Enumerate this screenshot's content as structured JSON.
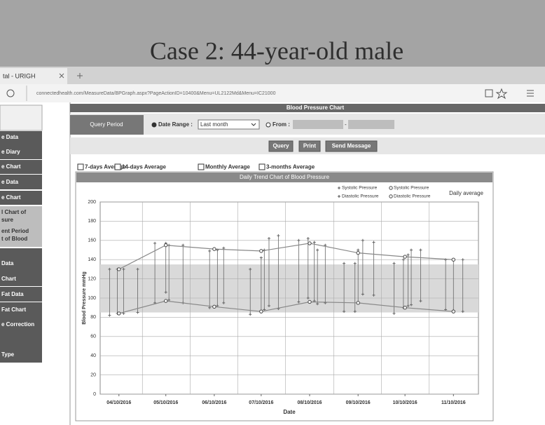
{
  "banner": {
    "title": "Case 2: 44-year-old male"
  },
  "browser": {
    "tab": "tal - URIGH",
    "url": "connectedhealth.com/MeasureData/BPGraph.aspx?PageActionID=10400&Menu=UL2122Md&Menu=IC21000"
  },
  "sidebar": {
    "items": [
      "e Data",
      "e Diary",
      "e Chart",
      "e Data",
      "e Chart",
      "l Chart of",
      "sure",
      "ent Period",
      "t of Blood",
      "Data",
      "Chart",
      "Fat Data",
      "Fat Chart",
      "e Correction",
      "Type"
    ]
  },
  "page": {
    "title": "Blood Pressure Chart",
    "query_label": "Query Period",
    "date_range": "Date Range :",
    "range_option": "Last month",
    "from": "From :",
    "dash": "-",
    "buttons": [
      "Query",
      "Print",
      "Send Message"
    ],
    "averages": [
      "7-days Average",
      "14-days Average",
      "Monthly Average",
      "3-months Average"
    ]
  },
  "chart_data": {
    "type": "line",
    "title": "Daily Trend Chart of Blood Pressure",
    "y_label": "Blood Pressure mmHg",
    "x_label": "Date",
    "legend_title": "Daily average",
    "ylim": [
      0,
      200
    ],
    "yticks": [
      0,
      20,
      40,
      60,
      80,
      100,
      120,
      140,
      160,
      180,
      200
    ],
    "grid": true,
    "band": [
      85,
      135
    ],
    "xlim": [
      "2016-03-29",
      "2016-11-26"
    ],
    "xticks": [
      {
        "value": "2016-04-10",
        "label": "04/10/2016"
      },
      {
        "value": "2016-05-10",
        "label": "05/10/2016"
      },
      {
        "value": "2016-06-10",
        "label": "06/10/2016"
      },
      {
        "value": "2016-07-10",
        "label": "07/10/2016"
      },
      {
        "value": "2016-08-10",
        "label": "08/10/2016"
      },
      {
        "value": "2016-09-10",
        "label": "09/10/2016"
      },
      {
        "value": "2016-10-10",
        "label": "10/10/2016"
      },
      {
        "value": "2016-11-10",
        "label": "11/10/2016"
      }
    ],
    "series": [
      {
        "name": "Systolic Pressure",
        "color": "#666666",
        "x": [
          "2016-04-04",
          "2016-04-09",
          "2016-04-13",
          "2016-04-22",
          "2016-05-03",
          "2016-05-10",
          "2016-05-12",
          "2016-05-21",
          "2016-06-07",
          "2016-06-12",
          "2016-06-16",
          "2016-07-03",
          "2016-07-10",
          "2016-07-12",
          "2016-07-15",
          "2016-07-21",
          "2016-08-03",
          "2016-08-09",
          "2016-08-13",
          "2016-08-15",
          "2016-08-20",
          "2016-09-01",
          "2016-09-08",
          "2016-09-10",
          "2016-09-13",
          "2016-09-20",
          "2016-10-03",
          "2016-10-09",
          "2016-10-12",
          "2016-10-14",
          "2016-10-20",
          "2016-11-05",
          "2016-11-10",
          "2016-11-16"
        ],
        "values": [
          130,
          130,
          130,
          130,
          157,
          157,
          155,
          155,
          149,
          150,
          152,
          130,
          142,
          150,
          162,
          165,
          160,
          162,
          158,
          150,
          155,
          136,
          136,
          150,
          160,
          158,
          136,
          140,
          145,
          150,
          150,
          140,
          140,
          140
        ]
      },
      {
        "name": "Diastolic Pressure",
        "color": "#666666",
        "x": [
          "2016-04-04",
          "2016-04-09",
          "2016-04-13",
          "2016-04-22",
          "2016-05-03",
          "2016-05-10",
          "2016-05-12",
          "2016-05-21",
          "2016-06-07",
          "2016-06-12",
          "2016-06-16",
          "2016-07-03",
          "2016-07-10",
          "2016-07-12",
          "2016-07-15",
          "2016-07-21",
          "2016-08-03",
          "2016-08-09",
          "2016-08-13",
          "2016-08-15",
          "2016-08-20",
          "2016-09-01",
          "2016-09-08",
          "2016-09-10",
          "2016-09-13",
          "2016-09-20",
          "2016-10-03",
          "2016-10-09",
          "2016-10-12",
          "2016-10-14",
          "2016-10-20",
          "2016-11-05",
          "2016-11-10",
          "2016-11-16"
        ],
        "values": [
          82,
          84,
          84,
          85,
          95,
          106,
          98,
          95,
          90,
          92,
          95,
          83,
          86,
          88,
          92,
          89,
          96,
          100,
          97,
          94,
          95,
          86,
          86,
          95,
          104,
          103,
          84,
          90,
          92,
          93,
          97,
          88,
          87,
          86
        ]
      },
      {
        "name": "Systolic Pressure",
        "color": "#888888",
        "x": [
          "2016-04-10",
          "2016-05-10",
          "2016-06-10",
          "2016-07-10",
          "2016-08-10",
          "2016-09-10",
          "2016-10-10",
          "2016-11-10"
        ],
        "values": [
          130,
          155,
          151,
          149,
          157,
          147,
          143,
          140
        ]
      },
      {
        "name": "Diastolic Pressure",
        "color": "#888888",
        "x": [
          "2016-04-10",
          "2016-05-10",
          "2016-06-10",
          "2016-07-10",
          "2016-08-10",
          "2016-09-10",
          "2016-10-10",
          "2016-11-10"
        ],
        "values": [
          84,
          97,
          91,
          86,
          96,
          95,
          90,
          86
        ]
      }
    ]
  }
}
